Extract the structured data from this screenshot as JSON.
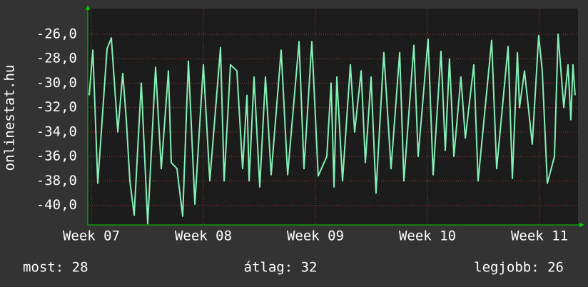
{
  "chart_data": {
    "type": "line",
    "ylabel": "onlinestat.hu",
    "xlim": [
      6.968,
      11.344
    ],
    "xticks": [
      {
        "value": 7,
        "label": "Week 07"
      },
      {
        "value": 8,
        "label": "Week 08"
      },
      {
        "value": 9,
        "label": "Week 09"
      },
      {
        "value": 10,
        "label": "Week 10"
      },
      {
        "value": 11,
        "label": "Week 11"
      }
    ],
    "ylim": [
      -41.6,
      -23.9
    ],
    "yticks": [
      {
        "value": -26,
        "label": "-26,0"
      },
      {
        "value": -28,
        "label": "-28,0"
      },
      {
        "value": -30,
        "label": "-30,0"
      },
      {
        "value": -32,
        "label": "-32,0"
      },
      {
        "value": -34,
        "label": "-34,0"
      },
      {
        "value": -36,
        "label": "-36,0"
      },
      {
        "value": -38,
        "label": "-38,0"
      },
      {
        "value": -40,
        "label": "-40,0"
      }
    ],
    "grid": true,
    "color": "#84f0b4",
    "x": [
      6.981,
      7.013,
      7.057,
      7.14,
      7.178,
      7.236,
      7.28,
      7.312,
      7.344,
      7.382,
      7.446,
      7.503,
      7.573,
      7.624,
      7.688,
      7.713,
      7.764,
      7.815,
      7.866,
      7.924,
      8.0,
      8.057,
      8.153,
      8.185,
      8.242,
      8.299,
      8.35,
      8.389,
      8.408,
      8.452,
      8.503,
      8.554,
      8.605,
      8.694,
      8.752,
      8.854,
      8.898,
      8.968,
      9.025,
      9.102,
      9.14,
      9.166,
      9.191,
      9.242,
      9.312,
      9.35,
      9.408,
      9.446,
      9.497,
      9.541,
      9.611,
      9.675,
      9.752,
      9.79,
      9.879,
      9.917,
      10.006,
      10.051,
      10.121,
      10.159,
      10.197,
      10.236,
      10.299,
      10.338,
      10.414,
      10.452,
      10.573,
      10.618,
      10.72,
      10.758,
      10.803,
      10.822,
      10.866,
      10.936,
      10.993,
      11.025,
      11.07,
      11.134,
      11.166,
      11.217,
      11.255,
      11.28,
      11.299,
      11.318
    ],
    "values": [
      -31,
      -27.3,
      -38.2,
      -27.2,
      -26.3,
      -34,
      -29.2,
      -33,
      -38,
      -40.8,
      -30,
      -41.5,
      -28.7,
      -37,
      -29,
      -36.5,
      -37,
      -40.9,
      -28.2,
      -39.9,
      -28.5,
      -38,
      -27.1,
      -38,
      -28.5,
      -29,
      -37,
      -31,
      -38,
      -29.5,
      -38.5,
      -29.5,
      -37.5,
      -27.3,
      -37.5,
      -26.6,
      -37,
      -26.6,
      -37.6,
      -36,
      -30,
      -38.5,
      -29.5,
      -38,
      -28.5,
      -34,
      -29,
      -36.5,
      -29.5,
      -39,
      -27.5,
      -37,
      -27.5,
      -38,
      -26.9,
      -36,
      -26.4,
      -37.5,
      -27.4,
      -35.5,
      -28,
      -36,
      -29.5,
      -34.5,
      -28.5,
      -38,
      -26.5,
      -37,
      -27,
      -37.8,
      -27.5,
      -32,
      -29,
      -35,
      -26.1,
      -29,
      -38.2,
      -36,
      -26,
      -32,
      -28.5,
      -33,
      -28.5,
      -31
    ],
    "footer": [
      "most: 28",
      "átlag: 32",
      "legjobb: 26"
    ]
  }
}
